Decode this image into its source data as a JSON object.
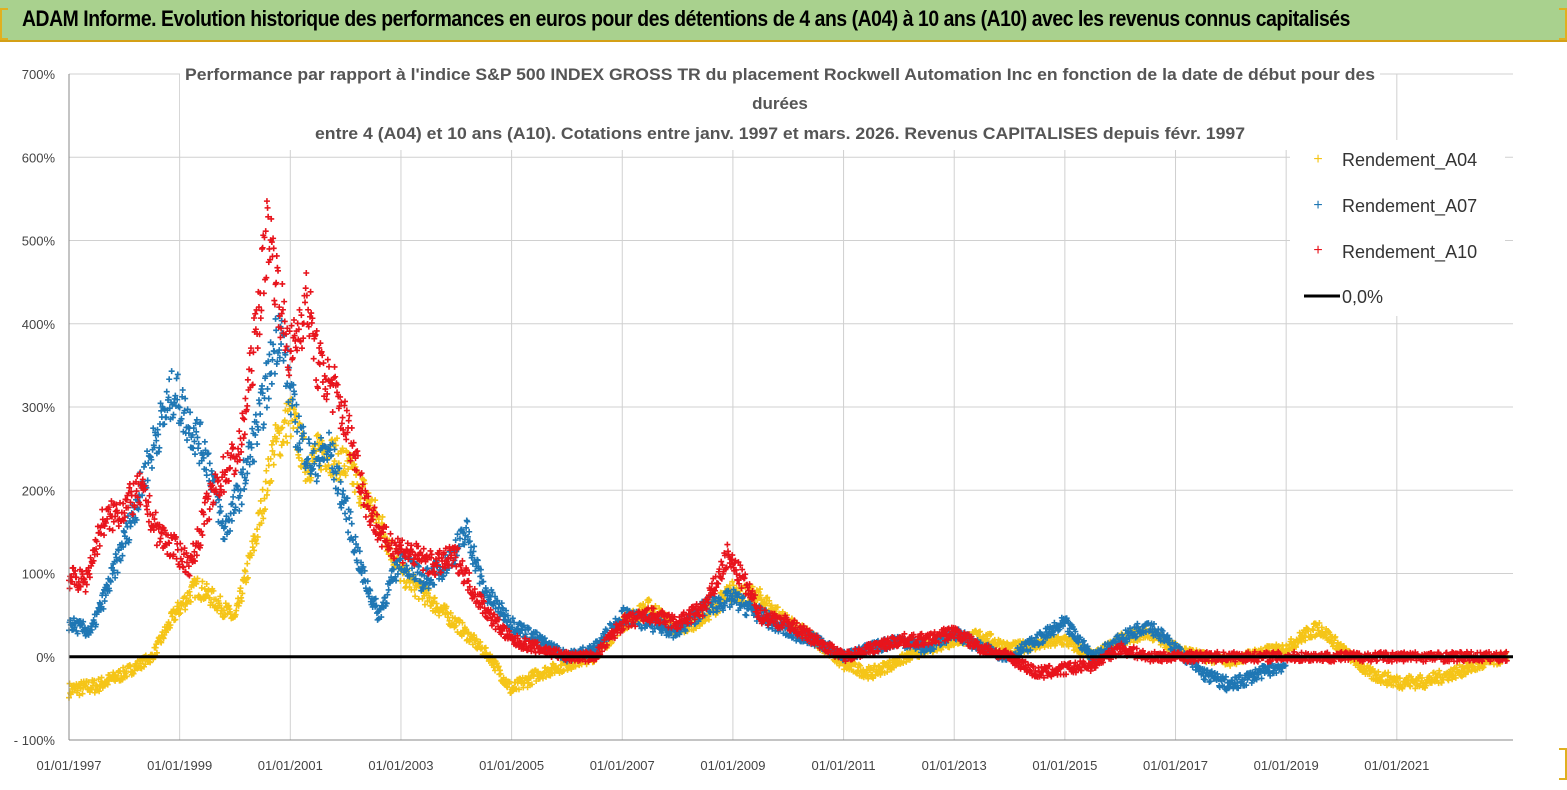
{
  "banner": {
    "title": "ADAM Informe. Evolution historique des performances en euros pour des détentions de 4 ans (A04) à 10 ans (A10) avec les revenus connus capitalisés"
  },
  "chart_data": {
    "type": "scatter",
    "title_lines": [
      "Performance par rapport à l'indice S&P 500 INDEX GROSS TR  du placement Rockwell Automation Inc en fonction de la date de début pour des",
      "durées",
      "entre 4 (A04) et 10 ans (A10).  Cotations entre janv. 1997 et mars. 2026. Revenus CAPITALISES depuis févr. 1997"
    ],
    "x_tick_labels": [
      "01/01/1997",
      "01/01/1999",
      "01/01/2001",
      "01/01/2003",
      "01/01/2005",
      "01/01/2007",
      "01/01/2009",
      "01/01/2011",
      "01/01/2013",
      "01/01/2015",
      "01/01/2017",
      "01/01/2019",
      "01/01/2021"
    ],
    "y_tick_labels": [
      "- 100%",
      "0%",
      "100%",
      "200%",
      "300%",
      "400%",
      "500%",
      "600%",
      "700%"
    ],
    "xlim": [
      1997.0,
      2023.1
    ],
    "ylim": [
      -100,
      700
    ],
    "grid": true,
    "legend_position": "right",
    "legend": {
      "a04": "Rendement_A04",
      "a07": "Rendement_A07",
      "a10": "Rendement_A10",
      "zero": "0,0%"
    },
    "colors": {
      "a04": "#f5c518",
      "a07": "#1f77b4",
      "a10": "#e8141c",
      "zero": "#000000"
    },
    "series": [
      {
        "name": "Rendement_A04",
        "x": [
          1997.0,
          1997.5,
          1998.0,
          1998.5,
          1998.9,
          1999.3,
          1999.6,
          2000.0,
          2000.4,
          2000.7,
          2001.0,
          2001.3,
          2001.6,
          2002.0,
          2002.3,
          2002.7,
          2003.0,
          2003.5,
          2004.0,
          2004.3,
          2004.6,
          2005.0,
          2005.5,
          2006.0,
          2006.5,
          2007.0,
          2007.5,
          2008.0,
          2008.5,
          2009.0,
          2009.5,
          2010.0,
          2010.5,
          2011.0,
          2011.5,
          2012.0,
          2012.5,
          2013.0,
          2013.5,
          2014.0,
          2014.5,
          2015.0,
          2015.5,
          2016.0,
          2016.5,
          2017.0,
          2017.5,
          2018.0,
          2018.5,
          2019.0,
          2019.3,
          2019.6,
          2020.0,
          2020.5,
          2021.0,
          2021.5,
          2022.0,
          2022.5,
          2023.0
        ],
        "y": [
          -40,
          -35,
          -20,
          0,
          50,
          85,
          70,
          45,
          150,
          250,
          290,
          230,
          250,
          230,
          200,
          150,
          100,
          70,
          40,
          20,
          0,
          -40,
          -20,
          -10,
          0,
          40,
          60,
          30,
          50,
          80,
          70,
          40,
          20,
          -10,
          -20,
          -5,
          10,
          20,
          25,
          10,
          15,
          20,
          0,
          20,
          30,
          10,
          0,
          -5,
          5,
          10,
          25,
          35,
          10,
          -20,
          -30,
          -30,
          -20,
          -10,
          0
        ]
      },
      {
        "name": "Rendement_A07",
        "x": [
          1997.0,
          1997.4,
          1997.8,
          1998.2,
          1998.6,
          1998.9,
          1999.1,
          1999.5,
          1999.8,
          2000.1,
          2000.5,
          2000.8,
          2001.1,
          2001.4,
          2001.7,
          2002.0,
          2002.3,
          2002.6,
          2003.0,
          2003.4,
          2003.8,
          2004.2,
          2004.5,
          2005.0,
          2005.5,
          2006.0,
          2006.5,
          2007.0,
          2007.5,
          2008.0,
          2008.5,
          2009.0,
          2009.5,
          2010.0,
          2010.5,
          2011.0,
          2011.5,
          2012.0,
          2012.5,
          2013.0,
          2013.5,
          2014.0,
          2014.5,
          2015.0,
          2015.5,
          2016.0,
          2016.5,
          2017.0,
          2017.5,
          2018.0,
          2018.5,
          2019.0
        ],
        "y": [
          40,
          30,
          100,
          180,
          270,
          320,
          290,
          240,
          150,
          200,
          300,
          400,
          280,
          230,
          250,
          180,
          100,
          50,
          120,
          90,
          110,
          150,
          80,
          40,
          20,
          0,
          10,
          50,
          40,
          30,
          60,
          70,
          50,
          30,
          20,
          0,
          10,
          20,
          10,
          30,
          10,
          0,
          20,
          40,
          0,
          20,
          40,
          10,
          -20,
          -35,
          -20,
          -10
        ]
      },
      {
        "name": "Rendement_A10",
        "x": [
          1997.0,
          1997.3,
          1997.6,
          1998.0,
          1998.3,
          1998.6,
          1998.9,
          1999.2,
          1999.5,
          1999.8,
          2000.1,
          2000.4,
          2000.6,
          2000.8,
          2001.0,
          2001.3,
          2001.5,
          2001.8,
          2002.1,
          2002.4,
          2002.7,
          2003.0,
          2003.3,
          2003.6,
          2004.0,
          2004.3,
          2004.6,
          2005.0,
          2005.5,
          2006.0,
          2006.5,
          2007.0,
          2007.5,
          2008.0,
          2008.5,
          2008.9,
          2009.2,
          2009.5,
          2010.0,
          2010.5,
          2011.0,
          2011.5,
          2012.0,
          2012.5,
          2013.0,
          2013.5,
          2014.0,
          2014.5,
          2015.0,
          2015.5,
          2016.0,
          2016.5,
          2017.0,
          2018.0,
          2019.0,
          2020.0,
          2021.0,
          2022.0,
          2023.0
        ],
        "y": [
          95,
          90,
          160,
          180,
          200,
          150,
          130,
          110,
          180,
          220,
          250,
          400,
          520,
          430,
          360,
          430,
          350,
          320,
          260,
          180,
          140,
          130,
          120,
          110,
          120,
          80,
          50,
          20,
          10,
          0,
          0,
          40,
          50,
          40,
          60,
          120,
          90,
          50,
          40,
          20,
          0,
          10,
          20,
          20,
          30,
          10,
          0,
          -20,
          -15,
          -10,
          10,
          0,
          0,
          0,
          0,
          0,
          0,
          0,
          0
        ]
      }
    ]
  }
}
